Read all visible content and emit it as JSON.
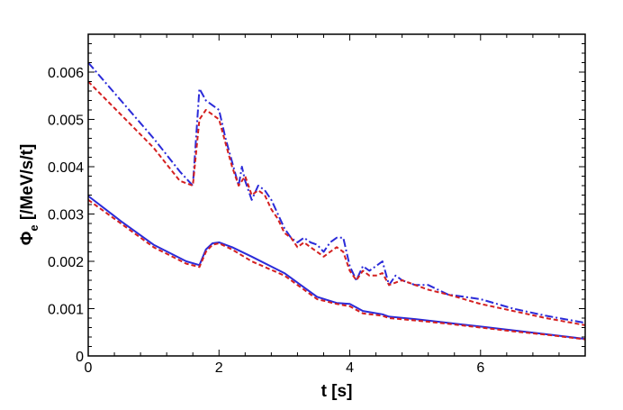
{
  "chart_data": {
    "type": "line",
    "xlabel": "t [s]",
    "ylabel_main": "Φ",
    "ylabel_sub": "e",
    "ylabel_rest": " [/MeV/s/t]",
    "xlim": [
      0,
      7.6
    ],
    "ylim": [
      0,
      0.0068
    ],
    "x_ticks": [
      0,
      2,
      4,
      6
    ],
    "x_tick_labels": [
      "0",
      "2",
      "4",
      "6"
    ],
    "y_ticks": [
      0,
      0.001,
      0.002,
      0.003,
      0.004,
      0.005,
      0.006
    ],
    "y_tick_labels": [
      "0",
      "0.001",
      "0.002",
      "0.003",
      "0.004",
      "0.005",
      "0.006"
    ],
    "grid": false,
    "series": [
      {
        "style": "dashdot",
        "color": "#2b2bd9",
        "x": [
          0,
          0.5,
          1.0,
          1.4,
          1.6,
          1.7,
          1.8,
          1.9,
          2.0,
          2.1,
          2.2,
          2.3,
          2.35,
          2.4,
          2.5,
          2.6,
          2.7,
          2.8,
          2.9,
          3.0,
          3.1,
          3.2,
          3.3,
          3.4,
          3.5,
          3.6,
          3.7,
          3.8,
          3.9,
          4.0,
          4.1,
          4.2,
          4.3,
          4.4,
          4.5,
          4.6,
          4.7,
          4.8,
          5.0,
          5.2,
          5.5,
          6.0,
          6.5,
          7.0,
          7.6
        ],
        "y": [
          0.0062,
          0.0054,
          0.0046,
          0.0039,
          0.0036,
          0.00565,
          0.0054,
          0.0053,
          0.0052,
          0.0046,
          0.0041,
          0.0036,
          0.004,
          0.0037,
          0.0033,
          0.0036,
          0.0035,
          0.0033,
          0.003,
          0.0027,
          0.0025,
          0.0024,
          0.0025,
          0.0024,
          0.00235,
          0.0022,
          0.0024,
          0.0025,
          0.0025,
          0.0019,
          0.0016,
          0.0019,
          0.0018,
          0.0019,
          0.002,
          0.0015,
          0.0017,
          0.0016,
          0.0015,
          0.0015,
          0.0013,
          0.0012,
          0.001,
          0.00085,
          0.0007
        ]
      },
      {
        "style": "dashed",
        "color": "#d42020",
        "x": [
          0,
          0.5,
          1.0,
          1.4,
          1.6,
          1.7,
          1.8,
          1.9,
          2.0,
          2.1,
          2.2,
          2.3,
          2.4,
          2.5,
          2.6,
          2.7,
          2.8,
          2.9,
          3.0,
          3.1,
          3.2,
          3.3,
          3.4,
          3.5,
          3.6,
          3.7,
          3.8,
          3.9,
          4.0,
          4.1,
          4.2,
          4.3,
          4.4,
          4.5,
          4.6,
          4.8,
          5.0,
          5.2,
          5.5,
          6.0,
          6.5,
          7.0,
          7.6
        ],
        "y": [
          0.0058,
          0.0051,
          0.0044,
          0.0037,
          0.0036,
          0.005,
          0.0052,
          0.0051,
          0.005,
          0.0045,
          0.004,
          0.0036,
          0.0038,
          0.0034,
          0.0035,
          0.0034,
          0.0031,
          0.0029,
          0.0026,
          0.0025,
          0.0023,
          0.0024,
          0.0023,
          0.0022,
          0.0021,
          0.0022,
          0.0023,
          0.0022,
          0.0018,
          0.0016,
          0.0018,
          0.0017,
          0.0017,
          0.00175,
          0.0015,
          0.0016,
          0.0015,
          0.0014,
          0.0013,
          0.0011,
          0.00095,
          0.0008,
          0.00065
        ]
      },
      {
        "style": "solid",
        "color": "#2b2bd9",
        "x": [
          0,
          0.5,
          1.0,
          1.5,
          1.7,
          1.8,
          1.9,
          2.0,
          2.2,
          2.5,
          3.0,
          3.3,
          3.5,
          3.8,
          4.0,
          4.2,
          4.5,
          4.6,
          5.0,
          5.5,
          6.0,
          6.5,
          7.0,
          7.6
        ],
        "y": [
          0.00338,
          0.00285,
          0.00235,
          0.002,
          0.00192,
          0.00225,
          0.00238,
          0.0024,
          0.0023,
          0.0021,
          0.00175,
          0.00145,
          0.00125,
          0.00112,
          0.0011,
          0.00095,
          0.00088,
          0.00083,
          0.00078,
          0.0007,
          0.00062,
          0.00054,
          0.00046,
          0.00036
        ]
      },
      {
        "style": "dashed",
        "color": "#d42020",
        "x": [
          0,
          0.5,
          1.0,
          1.5,
          1.7,
          1.8,
          1.9,
          2.0,
          2.2,
          2.5,
          3.0,
          3.3,
          3.5,
          3.8,
          4.0,
          4.2,
          4.5,
          4.6,
          5.0,
          5.5,
          6.0,
          6.5,
          7.0,
          7.6
        ],
        "y": [
          0.0033,
          0.0028,
          0.0023,
          0.00195,
          0.00188,
          0.0022,
          0.00235,
          0.00238,
          0.00225,
          0.002,
          0.0017,
          0.0014,
          0.0012,
          0.0011,
          0.00105,
          0.0009,
          0.00085,
          0.0008,
          0.00075,
          0.00068,
          0.0006,
          0.00052,
          0.00045,
          0.00035
        ]
      }
    ]
  }
}
